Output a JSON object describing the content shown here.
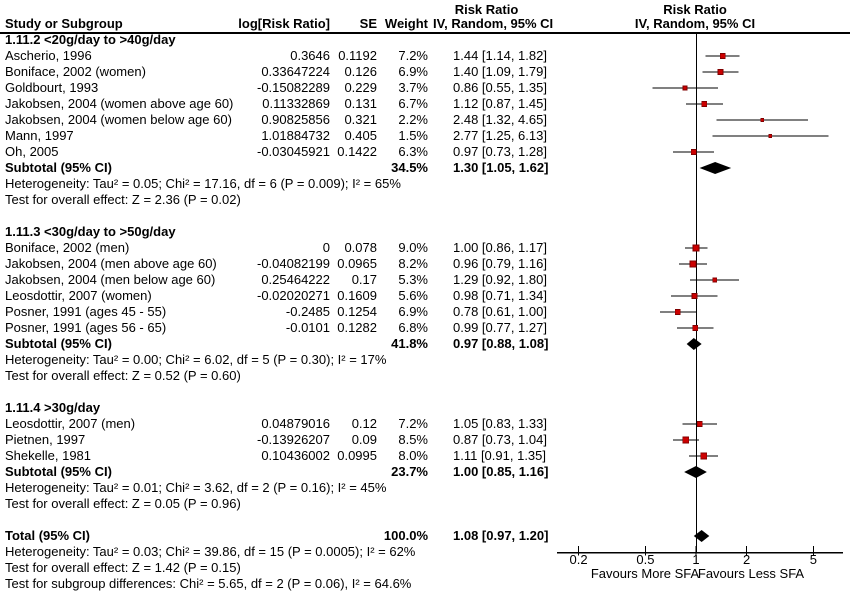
{
  "header": {
    "left_effect_title": "Risk Ratio",
    "col_study": "Study or Subgroup",
    "col_log_rr": "log[Risk Ratio]",
    "col_se": "SE",
    "col_weight": "Weight",
    "col_ci": "IV, Random, 95% CI",
    "right_effect_title": "Risk Ratio",
    "right_method_title": "IV, Random, 95% CI"
  },
  "colors": {
    "marker": "#CC0000",
    "marker_edge": "#7F0000",
    "diamond": "#000000",
    "line": "#000000",
    "text": "#000000",
    "background": "#FFFFFF"
  },
  "chart_data": {
    "type": "forest",
    "scale": "log",
    "effect_measure": "Risk Ratio",
    "method": "IV, Random, 95% CI",
    "axis": {
      "ticks": [
        "0.2",
        "0.5",
        "1",
        "2",
        "5"
      ],
      "tick_values": [
        0.2,
        0.5,
        1,
        2,
        5
      ],
      "left_label": "Favours More SFA",
      "right_label": "Favours Less SFA"
    },
    "subgroups": [
      {
        "title": "1.11.2 <20g/day to >40g/day",
        "studies": [
          {
            "name": "Ascherio, 1996",
            "log_rr": "0.3646",
            "se": "0.1192",
            "weight": "7.2%",
            "w": 7.2,
            "ci": "1.44 [1.14, 1.82]",
            "rr": 1.44,
            "low": 1.14,
            "high": 1.82
          },
          {
            "name": "Boniface, 2002 (women)",
            "log_rr": "0.33647224",
            "se": "0.126",
            "weight": "6.9%",
            "w": 6.9,
            "ci": "1.40 [1.09, 1.79]",
            "rr": 1.4,
            "low": 1.09,
            "high": 1.79
          },
          {
            "name": "Goldbourt, 1993",
            "log_rr": "-0.15082289",
            "se": "0.229",
            "weight": "3.7%",
            "w": 3.7,
            "ci": "0.86 [0.55, 1.35]",
            "rr": 0.86,
            "low": 0.55,
            "high": 1.35
          },
          {
            "name": "Jakobsen, 2004 (women above age 60)",
            "log_rr": "0.11332869",
            "se": "0.131",
            "weight": "6.7%",
            "w": 6.7,
            "ci": "1.12 [0.87, 1.45]",
            "rr": 1.12,
            "low": 0.87,
            "high": 1.45
          },
          {
            "name": "Jakobsen, 2004 (women below age 60)",
            "log_rr": "0.90825856",
            "se": "0.321",
            "weight": "2.2%",
            "w": 2.2,
            "ci": "2.48 [1.32, 4.65]",
            "rr": 2.48,
            "low": 1.32,
            "high": 4.65
          },
          {
            "name": "Mann, 1997",
            "log_rr": "1.01884732",
            "se": "0.405",
            "weight": "1.5%",
            "w": 1.5,
            "ci": "2.77 [1.25, 6.13]",
            "rr": 2.77,
            "low": 1.25,
            "high": 6.13
          },
          {
            "name": "Oh, 2005",
            "log_rr": "-0.03045921",
            "se": "0.1422",
            "weight": "6.3%",
            "w": 6.3,
            "ci": "0.97 [0.73, 1.28]",
            "rr": 0.97,
            "low": 0.73,
            "high": 1.28
          }
        ],
        "subtotal": {
          "label": "Subtotal (95% CI)",
          "weight": "34.5%",
          "ci": "1.30 [1.05, 1.62]",
          "rr": 1.3,
          "low": 1.05,
          "high": 1.62
        },
        "heterogeneity": "Heterogeneity: Tau² = 0.05; Chi² = 17.16, df = 6 (P = 0.009); I² = 65%",
        "overall_effect": "Test for overall effect: Z = 2.36 (P = 0.02)"
      },
      {
        "title": "1.11.3 <30g/day to >50g/day",
        "studies": [
          {
            "name": "Boniface, 2002 (men)",
            "log_rr": "0",
            "se": "0.078",
            "weight": "9.0%",
            "w": 9.0,
            "ci": "1.00 [0.86, 1.17]",
            "rr": 1.0,
            "low": 0.86,
            "high": 1.17
          },
          {
            "name": "Jakobsen, 2004 (men above age 60)",
            "log_rr": "-0.04082199",
            "se": "0.0965",
            "weight": "8.2%",
            "w": 8.2,
            "ci": "0.96 [0.79, 1.16]",
            "rr": 0.96,
            "low": 0.79,
            "high": 1.16
          },
          {
            "name": "Jakobsen, 2004 (men below age 60)",
            "log_rr": "0.25464222",
            "se": "0.17",
            "weight": "5.3%",
            "w": 5.3,
            "ci": "1.29 [0.92, 1.80]",
            "rr": 1.29,
            "low": 0.92,
            "high": 1.8
          },
          {
            "name": "Leosdottir, 2007 (women)",
            "log_rr": "-0.02020271",
            "se": "0.1609",
            "weight": "5.6%",
            "w": 5.6,
            "ci": "0.98 [0.71, 1.34]",
            "rr": 0.98,
            "low": 0.71,
            "high": 1.34
          },
          {
            "name": "Posner, 1991 (ages 45 - 55)",
            "log_rr": "-0.2485",
            "se": "0.1254",
            "weight": "6.9%",
            "w": 6.9,
            "ci": "0.78 [0.61, 1.00]",
            "rr": 0.78,
            "low": 0.61,
            "high": 1.0
          },
          {
            "name": "Posner, 1991 (ages 56 - 65)",
            "log_rr": "-0.0101",
            "se": "0.1282",
            "weight": "6.8%",
            "w": 6.8,
            "ci": "0.99 [0.77, 1.27]",
            "rr": 0.99,
            "low": 0.77,
            "high": 1.27
          }
        ],
        "subtotal": {
          "label": "Subtotal (95% CI)",
          "weight": "41.8%",
          "ci": "0.97 [0.88, 1.08]",
          "rr": 0.97,
          "low": 0.88,
          "high": 1.08
        },
        "heterogeneity": "Heterogeneity: Tau² = 0.00; Chi² = 6.02, df = 5 (P = 0.30); I² = 17%",
        "overall_effect": "Test for overall effect: Z = 0.52 (P = 0.60)"
      },
      {
        "title": "1.11.4 >30g/day",
        "studies": [
          {
            "name": "Leosdottir, 2007 (men)",
            "log_rr": "0.04879016",
            "se": "0.12",
            "weight": "7.2%",
            "w": 7.2,
            "ci": "1.05 [0.83, 1.33]",
            "rr": 1.05,
            "low": 0.83,
            "high": 1.33
          },
          {
            "name": "Pietnen, 1997",
            "log_rr": "-0.13926207",
            "se": "0.09",
            "weight": "8.5%",
            "w": 8.5,
            "ci": "0.87 [0.73, 1.04]",
            "rr": 0.87,
            "low": 0.73,
            "high": 1.04
          },
          {
            "name": "Shekelle, 1981",
            "log_rr": "0.10436002",
            "se": "0.0995",
            "weight": "8.0%",
            "w": 8.0,
            "ci": "1.11 [0.91, 1.35]",
            "rr": 1.11,
            "low": 0.91,
            "high": 1.35
          }
        ],
        "subtotal": {
          "label": "Subtotal (95% CI)",
          "weight": "23.7%",
          "ci": "1.00 [0.85, 1.16]",
          "rr": 1.0,
          "low": 0.85,
          "high": 1.16
        },
        "heterogeneity": "Heterogeneity: Tau² = 0.01; Chi² = 3.62, df = 2 (P = 0.16); I² = 45%",
        "overall_effect": "Test for overall effect: Z = 0.05 (P = 0.96)"
      }
    ],
    "total": {
      "label": "Total (95% CI)",
      "weight": "100.0%",
      "ci": "1.08 [0.97, 1.20]",
      "rr": 1.08,
      "low": 0.97,
      "high": 1.2,
      "heterogeneity": "Heterogeneity: Tau² = 0.03; Chi² = 39.86, df = 15 (P = 0.0005); I² = 62%",
      "overall_effect": "Test for overall effect: Z = 1.42 (P = 0.15)",
      "subgroup_differences": "Test for subgroup differences: Chi² = 5.65, df = 2 (P = 0.06), I² = 64.6%"
    }
  }
}
